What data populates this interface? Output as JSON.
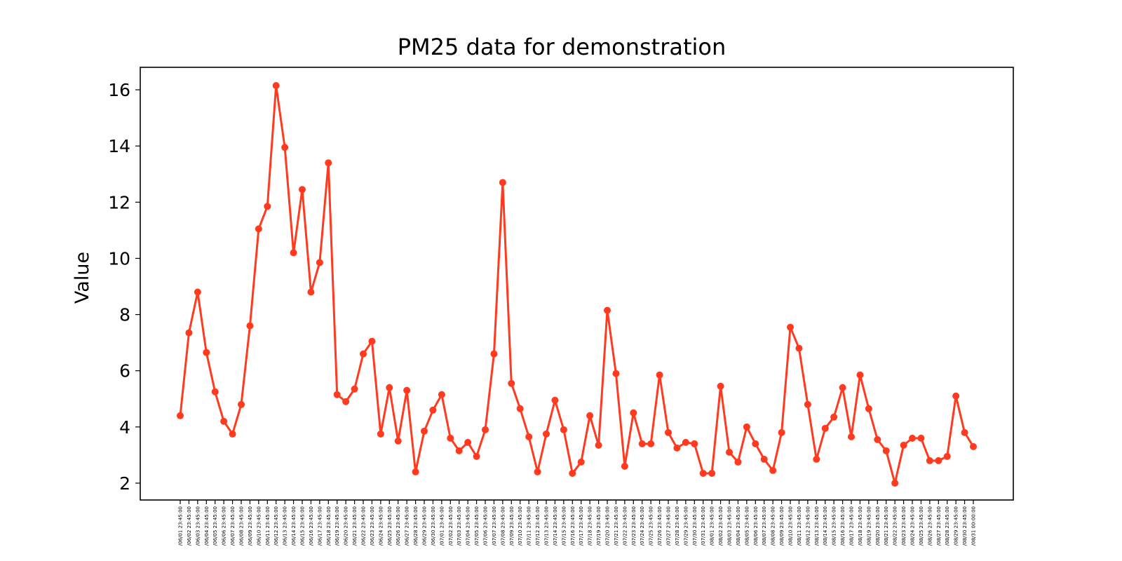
{
  "chart_data": {
    "type": "line",
    "title": "PM25 data for demonstration",
    "xlabel": "",
    "ylabel": "Value",
    "ylim": [
      1.4,
      16.8
    ],
    "yticks": [
      2,
      4,
      6,
      8,
      10,
      12,
      14,
      16
    ],
    "grid": false,
    "legend": "none",
    "color": "#ff3a1f",
    "x": [
      "/06/01 23:45:00",
      "/06/02 23:45:00",
      "/06/03 23:45:00",
      "/06/04 23:45:00",
      "/06/05 23:45:00",
      "/06/06 23:45:00",
      "/06/07 23:45:00",
      "/06/08 23:45:00",
      "/06/09 23:45:00",
      "/06/10 23:45:00",
      "/06/11 23:45:00",
      "/06/12 23:45:00",
      "/06/13 23:45:00",
      "/06/14 23:45:00",
      "/06/15 23:45:00",
      "/06/16 23:45:00",
      "/06/17 23:45:00",
      "/06/18 23:45:00",
      "/06/19 23:45:00",
      "/06/20 23:45:00",
      "/06/21 23:45:00",
      "/06/22 23:45:00",
      "/06/23 23:45:00",
      "/06/24 23:45:00",
      "/06/25 23:45:00",
      "/06/26 23:45:00",
      "/06/27 23:45:00",
      "/06/28 23:45:00",
      "/06/29 23:45:00",
      "/06/30 23:45:00",
      "/07/01 23:45:00",
      "/07/02 23:45:00",
      "/07/03 23:45:00",
      "/07/04 23:45:00",
      "/07/05 23:45:00",
      "/07/06 23:45:00",
      "/07/07 23:45:00",
      "/07/08 23:45:00",
      "/07/09 23:45:00",
      "/07/10 23:45:00",
      "/07/11 23:45:00",
      "/07/12 23:45:00",
      "/07/13 23:45:00",
      "/07/14 23:45:00",
      "/07/15 23:45:00",
      "/07/16 23:45:00",
      "/07/17 23:45:00",
      "/07/18 23:45:00",
      "/07/19 23:45:00",
      "/07/20 23:45:00",
      "/07/21 23:45:00",
      "/07/22 23:45:00",
      "/07/23 23:45:00",
      "/07/24 23:45:00",
      "/07/25 23:45:00",
      "/07/26 23:45:00",
      "/07/27 23:45:00",
      "/07/28 23:45:00",
      "/07/29 23:45:00",
      "/07/30 23:45:00",
      "/07/31 23:45:00",
      "/08/01 23:45:00",
      "/08/02 23:45:00",
      "/08/03 23:45:00",
      "/08/04 23:45:00",
      "/08/05 23:45:00",
      "/08/06 23:45:00",
      "/08/07 23:45:00",
      "/08/08 23:45:00",
      "/08/09 23:45:00",
      "/08/10 23:45:00",
      "/08/11 23:45:00",
      "/08/12 23:45:00",
      "/08/13 23:45:00",
      "/08/14 23:45:00",
      "/08/15 23:45:00",
      "/08/16 23:45:00",
      "/08/17 23:45:00",
      "/08/18 23:45:00",
      "/08/19 23:45:00",
      "/08/20 23:45:00",
      "/08/21 23:45:00",
      "/08/22 23:45:00",
      "/08/23 23:45:00",
      "/08/24 23:45:00",
      "/08/25 23:45:00",
      "/08/26 23:45:00",
      "/08/27 23:45:00",
      "/08/28 23:45:00",
      "/08/29 23:45:00",
      "/08/30 23:45:00",
      "/08/31 00:00:00"
    ],
    "series": [
      {
        "values": [
          4.4,
          7.35,
          8.8,
          6.65,
          5.25,
          4.2,
          3.75,
          4.8,
          7.6,
          11.05,
          11.85,
          16.15,
          13.95,
          10.2,
          12.45,
          8.8,
          9.85,
          13.4,
          5.15,
          4.9,
          5.35,
          6.6,
          7.05,
          3.75,
          5.4,
          3.5,
          5.3,
          2.4,
          3.85,
          4.6,
          5.15,
          3.6,
          3.15,
          3.45,
          2.95,
          3.9,
          6.6,
          12.7,
          5.55,
          4.65,
          3.65,
          2.4,
          3.75,
          4.95,
          3.9,
          2.35,
          2.75,
          4.4,
          3.35,
          8.15,
          5.9,
          2.6,
          4.5,
          3.4,
          3.4,
          5.85,
          3.8,
          3.25,
          3.45,
          3.4,
          2.35,
          2.35,
          5.45,
          3.1,
          2.75,
          4.0,
          3.4,
          2.85,
          2.45,
          3.8,
          7.55,
          6.8,
          4.8,
          2.85,
          3.95,
          4.35,
          5.4,
          3.65,
          5.85,
          4.65,
          3.55,
          3.15,
          2.0,
          3.35,
          3.6,
          3.6,
          2.8,
          2.8,
          2.95,
          5.1,
          3.8,
          3.3
        ]
      }
    ]
  }
}
